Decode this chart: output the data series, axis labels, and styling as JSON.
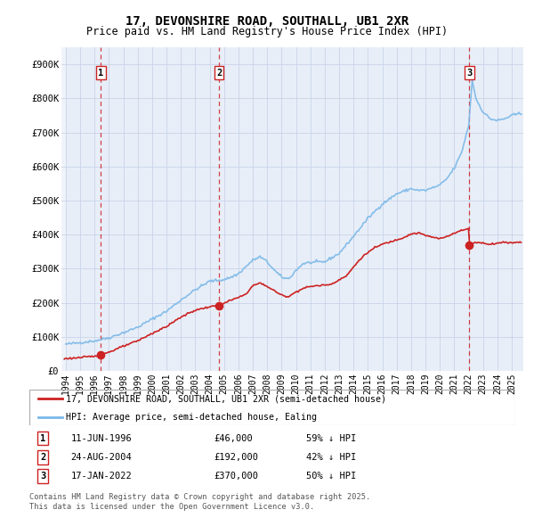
{
  "title": "17, DEVONSHIRE ROAD, SOUTHALL, UB1 2XR",
  "subtitle": "Price paid vs. HM Land Registry's House Price Index (HPI)",
  "ylim": [
    0,
    950000
  ],
  "yticks": [
    0,
    100000,
    200000,
    300000,
    400000,
    500000,
    600000,
    700000,
    800000,
    900000
  ],
  "ytick_labels": [
    "£0",
    "£100K",
    "£200K",
    "£300K",
    "£400K",
    "£500K",
    "£600K",
    "£700K",
    "£800K",
    "£900K"
  ],
  "xlim_start": 1993.7,
  "xlim_end": 2025.8,
  "xticks": [
    1994,
    1995,
    1996,
    1997,
    1998,
    1999,
    2000,
    2001,
    2002,
    2003,
    2004,
    2005,
    2006,
    2007,
    2008,
    2009,
    2010,
    2011,
    2012,
    2013,
    2014,
    2015,
    2016,
    2017,
    2018,
    2019,
    2020,
    2021,
    2022,
    2023,
    2024,
    2025
  ],
  "hpi_color": "#7ab8e8",
  "price_color": "#cc2222",
  "marker_color": "#cc2222",
  "grid_color": "#c8d4e8",
  "bg_color": "#e8eef8",
  "transactions": [
    {
      "num": 1,
      "year": 1996.44,
      "price": 46000,
      "label": "11-JUN-1996",
      "amount": "£46,000",
      "hpi_pct": "59% ↓ HPI"
    },
    {
      "num": 2,
      "year": 2004.65,
      "price": 192000,
      "label": "24-AUG-2004",
      "amount": "£192,000",
      "hpi_pct": "42% ↓ HPI"
    },
    {
      "num": 3,
      "year": 2022.04,
      "price": 370000,
      "label": "17-JAN-2022",
      "amount": "£370,000",
      "hpi_pct": "50% ↓ HPI"
    }
  ],
  "legend_line1": "17, DEVONSHIRE ROAD, SOUTHALL, UB1 2XR (semi-detached house)",
  "legend_line2": "HPI: Average price, semi-detached house, Ealing",
  "footer": "Contains HM Land Registry data © Crown copyright and database right 2025.\nThis data is licensed under the Open Government Licence v3.0."
}
